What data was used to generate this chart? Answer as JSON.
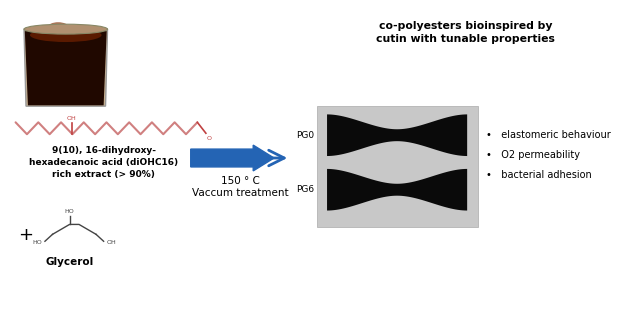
{
  "bg_color": "#ffffff",
  "acid_label": "9(10), 16-dihydroxy-\nhexadecanoic acid (diOHC16)\nrich extract (> 90%)",
  "plus_text": "+",
  "glycerol_text": "Glycerol",
  "arrow_color": "#2464b4",
  "temp_text": "150 ° C",
  "vacuum_text": "Vaccum treatment",
  "copolyester_title": "co-polyesters bioinspired by\ncutin with tunable properties",
  "pg0_label": "PG0",
  "pg6_label": "PG6",
  "bullet_items": [
    "elastomeric behaviour",
    "O2 permeability",
    "bacterial adhesion"
  ],
  "zigzag_color": "#d08080",
  "oh_color": "#c04040",
  "dumbbell_bg": "#c8c8c8",
  "dumbbell_fg": "#0a0a0a",
  "cup_dark": "#200800",
  "cup_mid": "#5a1a00",
  "cup_rim": "#8b3a10"
}
